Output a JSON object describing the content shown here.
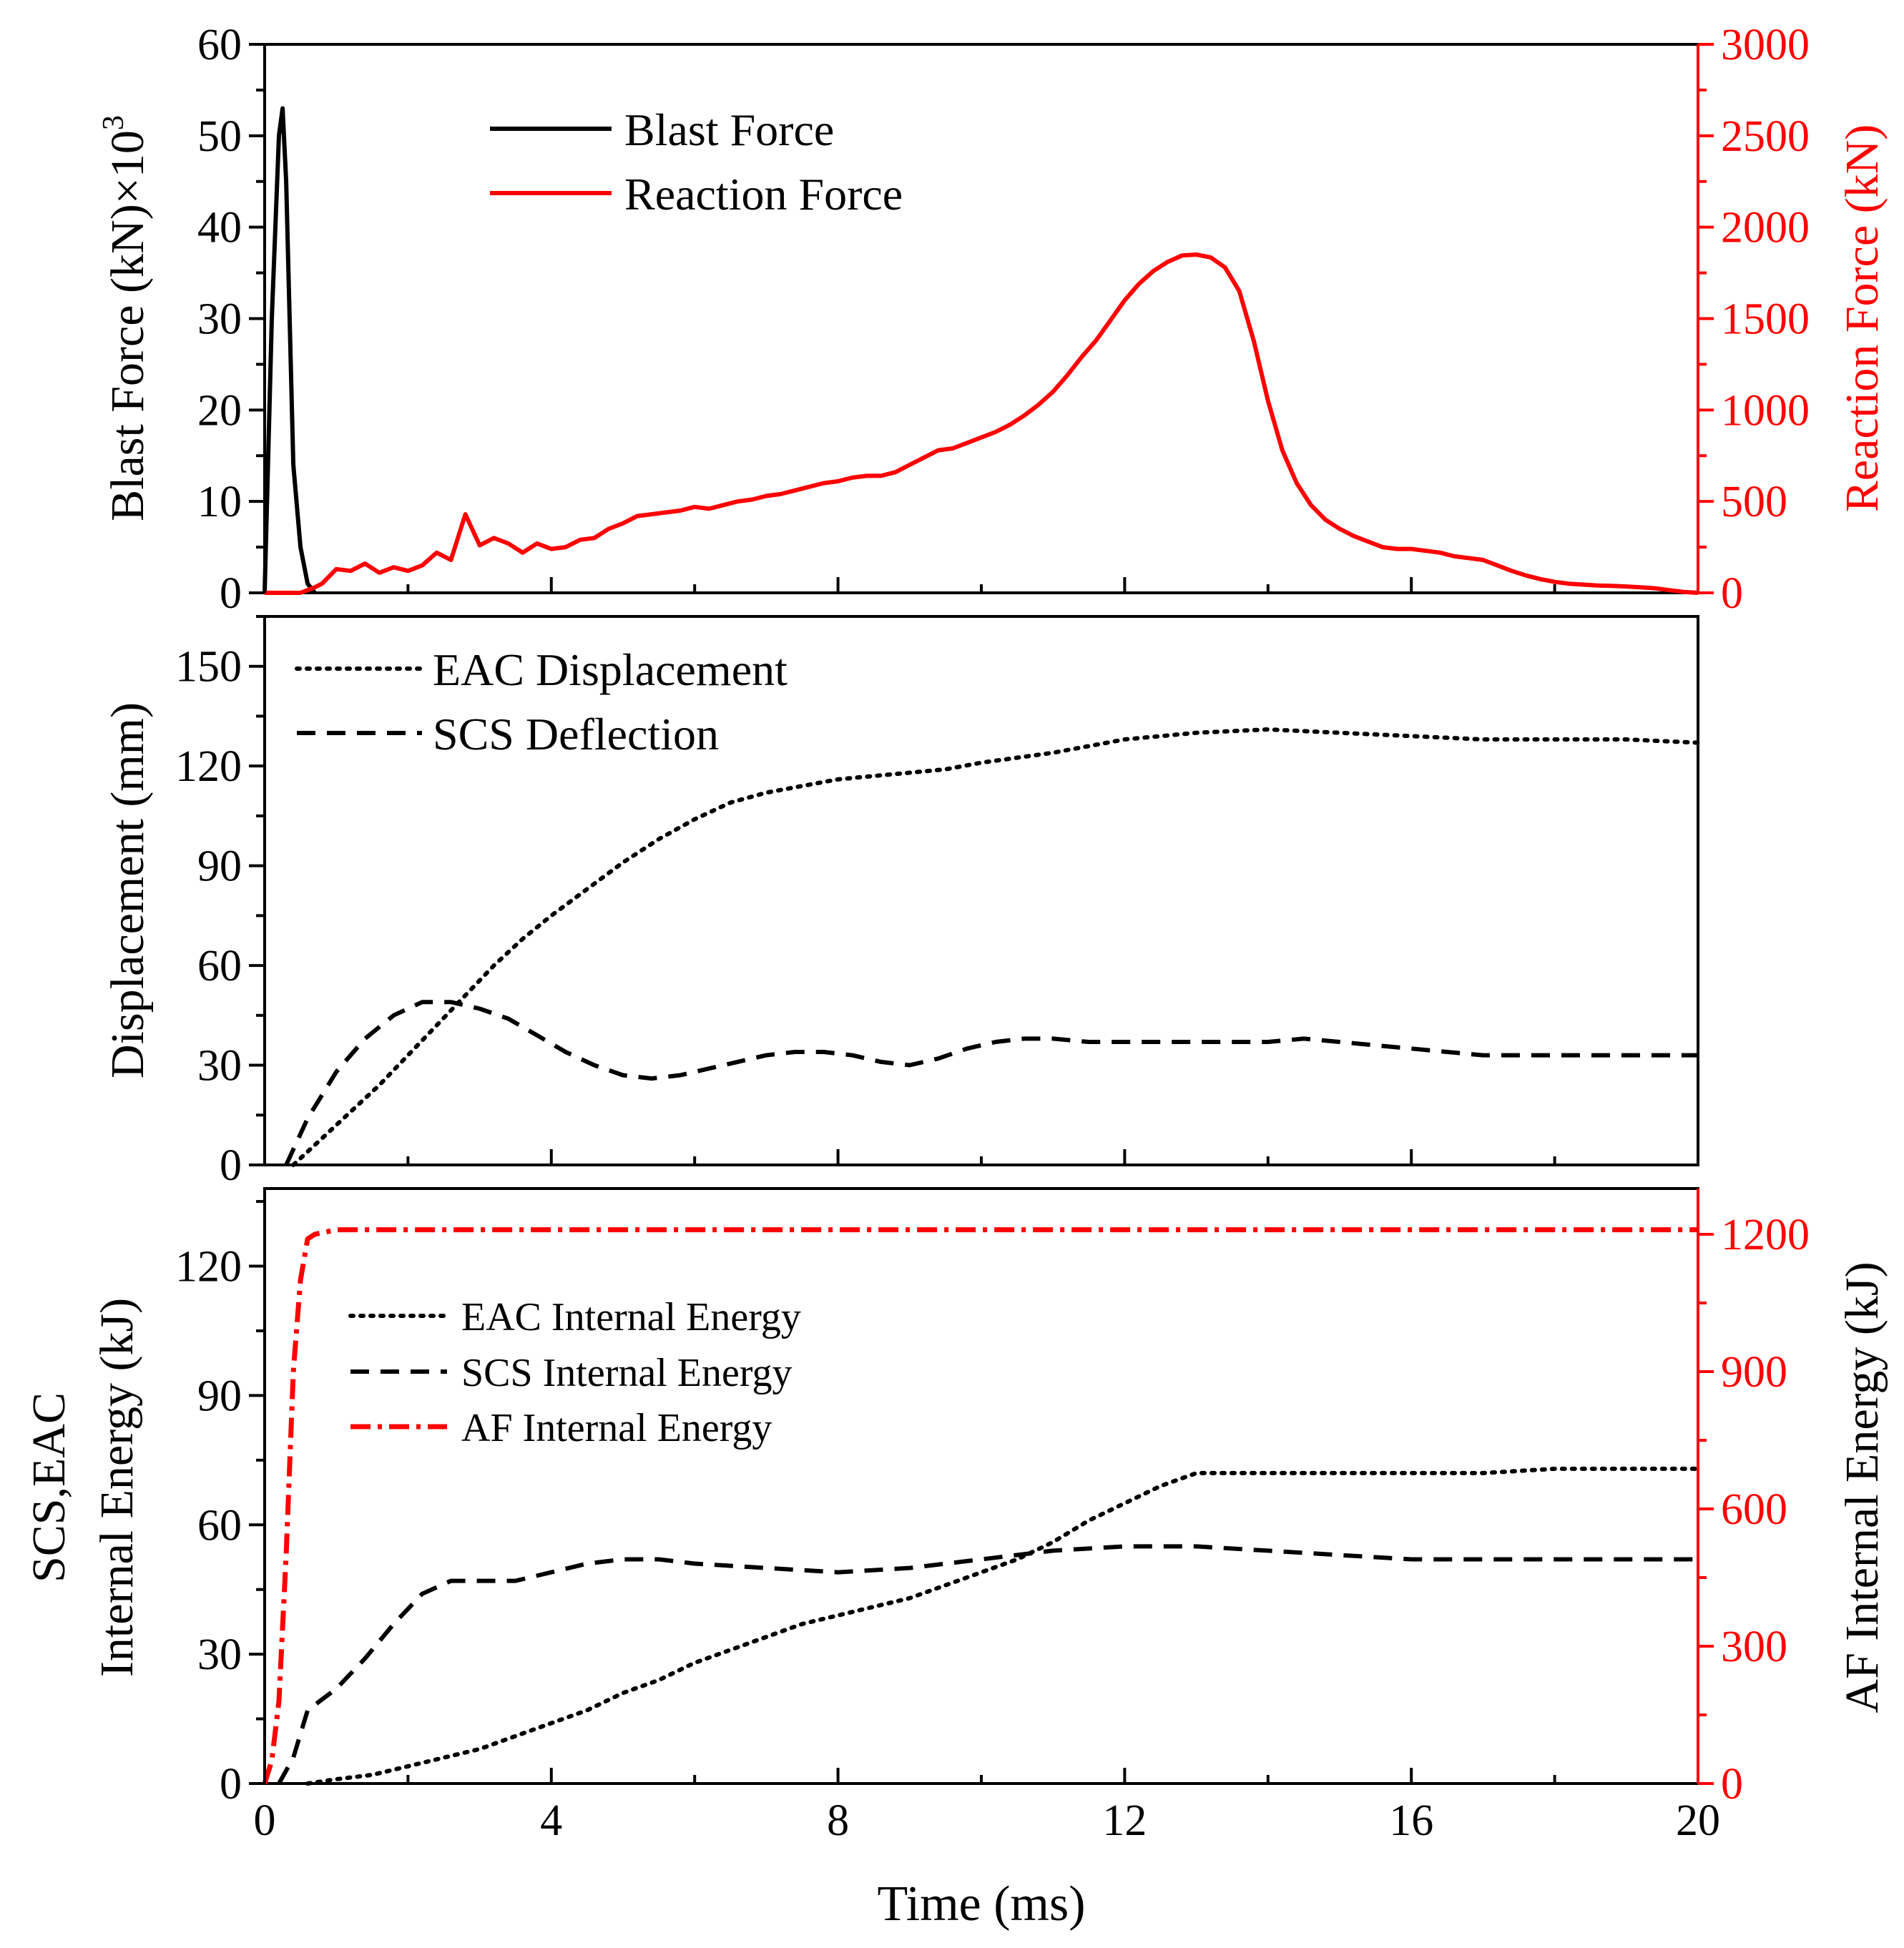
{
  "colors": {
    "black": "#000000",
    "red": "#ff0000"
  },
  "shared_xlabel": "Time (ms)",
  "chart_data": [
    {
      "type": "line",
      "id": "force",
      "ylabel": "Blast Force (kN)×10",
      "ylabel_sup": "3",
      "y2label": "Reaction Force (kN)",
      "xlim": [
        0,
        20
      ],
      "ylim": [
        0,
        60
      ],
      "y2lim": [
        0,
        3000
      ],
      "xticks": [
        0,
        4,
        8,
        12,
        16,
        20
      ],
      "yticks": [
        0,
        10,
        20,
        30,
        40,
        50,
        60
      ],
      "y2ticks": [
        0,
        500,
        1000,
        1500,
        2000,
        2500,
        3000
      ],
      "legend_position": "top-center",
      "series": [
        {
          "name": "Blast Force",
          "axis": "left",
          "color": "#000000",
          "dash": "solid",
          "x": [
            0,
            0.1,
            0.2,
            0.25,
            0.3,
            0.4,
            0.5,
            0.6,
            0.7
          ],
          "y": [
            0,
            30,
            50,
            53,
            45,
            14,
            5,
            1,
            0
          ]
        },
        {
          "name": "Reaction Force",
          "axis": "right",
          "color": "#ff0000",
          "dash": "solid",
          "x": [
            0,
            0.5,
            0.7,
            0.8,
            1.0,
            1.2,
            1.4,
            1.6,
            1.8,
            2.0,
            2.2,
            2.4,
            2.6,
            2.8,
            3.0,
            3.2,
            3.4,
            3.6,
            3.8,
            4.0,
            4.2,
            4.4,
            4.6,
            4.8,
            5.0,
            5.2,
            5.4,
            5.6,
            5.8,
            6.0,
            6.2,
            6.4,
            6.6,
            6.8,
            7.0,
            7.2,
            7.4,
            7.6,
            7.8,
            8.0,
            8.2,
            8.4,
            8.6,
            8.8,
            9.0,
            9.2,
            9.4,
            9.6,
            9.8,
            10.0,
            10.2,
            10.4,
            10.6,
            10.8,
            11.0,
            11.2,
            11.4,
            11.6,
            11.8,
            12.0,
            12.2,
            12.4,
            12.6,
            12.8,
            13.0,
            13.2,
            13.4,
            13.6,
            13.8,
            14.0,
            14.2,
            14.4,
            14.6,
            14.8,
            15.0,
            15.2,
            15.4,
            15.6,
            15.8,
            16.0,
            16.2,
            16.4,
            16.6,
            16.8,
            17.0,
            17.2,
            17.4,
            17.6,
            17.8,
            18.0,
            18.2,
            18.4,
            18.6,
            18.8,
            19.0,
            19.2,
            19.4,
            19.6,
            19.8,
            20.0
          ],
          "y": [
            0,
            0,
            30,
            50,
            130,
            120,
            160,
            110,
            140,
            120,
            150,
            220,
            180,
            430,
            260,
            300,
            270,
            220,
            270,
            240,
            250,
            290,
            300,
            350,
            380,
            420,
            430,
            440,
            450,
            470,
            460,
            480,
            500,
            510,
            530,
            540,
            560,
            580,
            600,
            610,
            630,
            640,
            640,
            660,
            700,
            740,
            780,
            790,
            820,
            850,
            880,
            920,
            970,
            1030,
            1100,
            1190,
            1290,
            1380,
            1490,
            1600,
            1690,
            1760,
            1810,
            1845,
            1850,
            1835,
            1780,
            1650,
            1380,
            1050,
            780,
            600,
            480,
            400,
            350,
            310,
            280,
            250,
            240,
            240,
            230,
            220,
            200,
            190,
            180,
            150,
            120,
            95,
            75,
            60,
            50,
            45,
            40,
            38,
            35,
            30,
            25,
            15,
            5,
            0
          ]
        }
      ]
    },
    {
      "type": "line",
      "id": "displacement",
      "ylabel": "Displacement (mm)",
      "xlim": [
        0,
        20
      ],
      "ylim": [
        0,
        165
      ],
      "xticks": [
        0,
        4,
        8,
        12,
        16,
        20
      ],
      "yticks": [
        0,
        30,
        60,
        90,
        120,
        150
      ],
      "legend_position": "top-left",
      "series": [
        {
          "name": "EAC Displacement",
          "axis": "left",
          "color": "#000000",
          "dash": "dotted",
          "x": [
            0.4,
            0.8,
            1.2,
            1.6,
            2.0,
            2.4,
            2.8,
            3.2,
            3.6,
            4.0,
            4.5,
            5.0,
            5.5,
            6.0,
            6.5,
            7.0,
            7.5,
            8.0,
            8.5,
            9.0,
            9.5,
            10.0,
            11.0,
            12.0,
            13.0,
            14.0,
            15.0,
            16.0,
            17.0,
            18.0,
            19.0,
            20.0
          ],
          "y": [
            0,
            8,
            16,
            24,
            33,
            42,
            51,
            60,
            68,
            75,
            83,
            91,
            98,
            104,
            109,
            112,
            114,
            116,
            117,
            118,
            119,
            121,
            124,
            128,
            130,
            131,
            130,
            129,
            128,
            128,
            128,
            127
          ]
        },
        {
          "name": "SCS Deflection",
          "axis": "left",
          "color": "#000000",
          "dash": "dashed",
          "x": [
            0.3,
            0.6,
            1.0,
            1.4,
            1.8,
            2.2,
            2.6,
            3.0,
            3.4,
            3.8,
            4.2,
            4.6,
            5.0,
            5.4,
            5.8,
            6.2,
            6.6,
            7.0,
            7.4,
            7.8,
            8.2,
            8.6,
            9.0,
            9.4,
            9.8,
            10.2,
            10.6,
            11.0,
            11.5,
            12.0,
            12.5,
            13.0,
            13.5,
            14.0,
            14.5,
            15.0,
            15.5,
            16.0,
            16.5,
            17.0,
            17.5,
            18.0,
            19.0,
            20.0
          ],
          "y": [
            0,
            14,
            28,
            38,
            45,
            49,
            49,
            47,
            44,
            39,
            34,
            30,
            27,
            26,
            27,
            29,
            31,
            33,
            34,
            34,
            33,
            31,
            30,
            32,
            35,
            37,
            38,
            38,
            37,
            37,
            37,
            37,
            37,
            37,
            38,
            37,
            36,
            35,
            34,
            33,
            33,
            33,
            33,
            33
          ]
        }
      ]
    },
    {
      "type": "line",
      "id": "energy",
      "ylabel_line1": "SCS,EAC",
      "ylabel_line2": "Internal Energy (kJ)",
      "y2label": "AF Internal Energy (kJ)",
      "xlabel": "Time (ms)",
      "xlim": [
        0,
        20
      ],
      "ylim": [
        0,
        138
      ],
      "y2lim": [
        0,
        1300
      ],
      "xticks": [
        0,
        4,
        8,
        12,
        16,
        20
      ],
      "yticks": [
        0,
        30,
        60,
        90,
        120
      ],
      "y2ticks": [
        0,
        300,
        600,
        900,
        1200
      ],
      "legend_position": "upper-left",
      "series": [
        {
          "name": "EAC Internal Energy",
          "axis": "left",
          "color": "#000000",
          "dash": "dotted",
          "x": [
            0.6,
            1.0,
            1.5,
            2.0,
            2.5,
            3.0,
            3.5,
            4.0,
            4.5,
            5.0,
            5.5,
            6.0,
            6.5,
            7.0,
            7.5,
            8.0,
            8.5,
            9.0,
            9.5,
            10.0,
            10.5,
            11.0,
            11.5,
            12.0,
            12.5,
            13.0,
            14.0,
            15.0,
            16.0,
            17.0,
            18.0,
            19.0,
            20.0
          ],
          "y": [
            0,
            1,
            2,
            4,
            6,
            8,
            11,
            14,
            17,
            21,
            24,
            28,
            31,
            34,
            37,
            39,
            41,
            43,
            46,
            49,
            52,
            56,
            61,
            65,
            69,
            72,
            72,
            72,
            72,
            72,
            73,
            73,
            73
          ]
        },
        {
          "name": "SCS Internal Energy",
          "axis": "left",
          "color": "#000000",
          "dash": "dashed",
          "x": [
            0.2,
            0.4,
            0.6,
            1.0,
            1.4,
            1.8,
            2.2,
            2.6,
            3.0,
            3.5,
            4.0,
            4.5,
            5.0,
            5.5,
            6.0,
            7.0,
            8.0,
            9.0,
            10.0,
            11.0,
            12.0,
            13.0,
            14.0,
            15.0,
            16.0,
            17.0,
            18.0,
            19.0,
            20.0
          ],
          "y": [
            0,
            6,
            17,
            22,
            29,
            37,
            44,
            47,
            47,
            47,
            49,
            51,
            52,
            52,
            51,
            50,
            49,
            50,
            52,
            54,
            55,
            55,
            54,
            53,
            52,
            52,
            52,
            52,
            52
          ]
        },
        {
          "name": "AF Internal Energy",
          "axis": "right",
          "color": "#ff0000",
          "dash": "dashdot",
          "x": [
            0,
            0.1,
            0.2,
            0.3,
            0.4,
            0.5,
            0.6,
            0.7,
            1.0,
            2.0,
            4.0,
            6.0,
            8.0,
            10.0,
            12.0,
            14.0,
            16.0,
            18.0,
            20.0
          ],
          "y": [
            0,
            50,
            180,
            500,
            900,
            1100,
            1190,
            1200,
            1210,
            1210,
            1210,
            1210,
            1210,
            1210,
            1210,
            1210,
            1210,
            1210,
            1210
          ]
        }
      ]
    }
  ]
}
